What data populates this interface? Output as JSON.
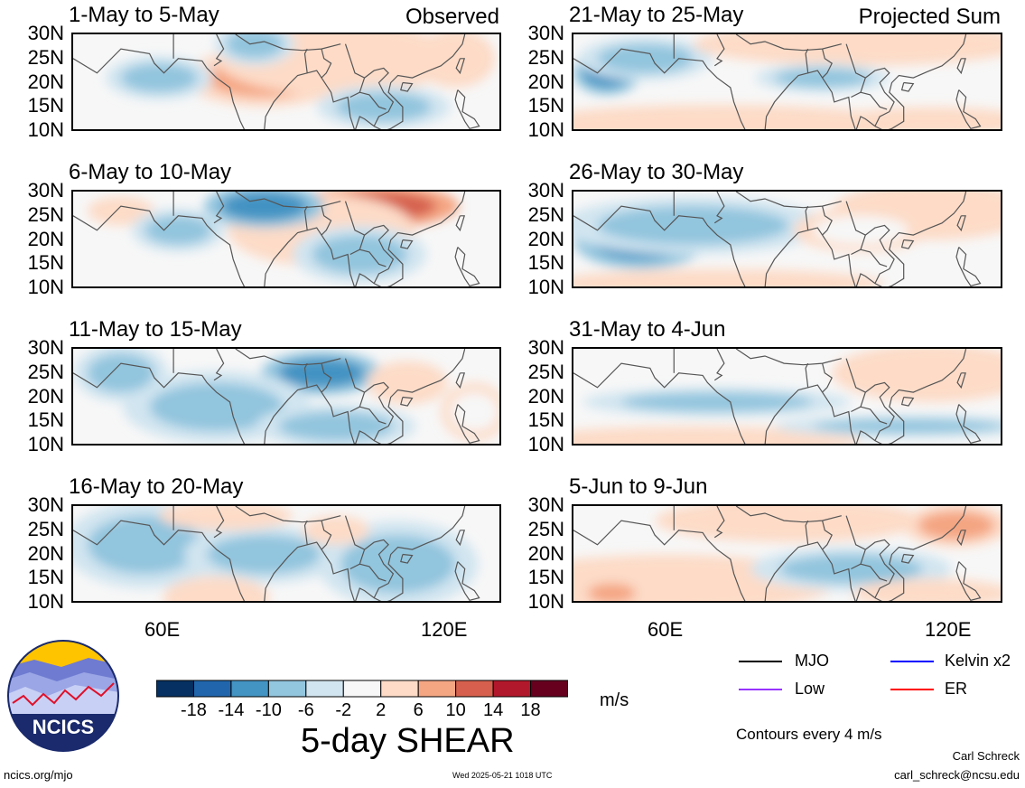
{
  "chart_data": [
    {
      "type": "heatmap",
      "title": "1-May to 5-May",
      "tag": "Observed",
      "column": "left",
      "yticks": [
        "30N",
        "25N",
        "20N",
        "15N",
        "10N"
      ],
      "blobs": [
        {
          "v": 10,
          "lon": 80,
          "lat": 21,
          "rx": 12,
          "ry": 4
        },
        {
          "v": 6,
          "lon": 95,
          "lat": 25,
          "rx": 18,
          "ry": 5
        },
        {
          "v": -6,
          "lon": 78,
          "lat": 28,
          "rx": 6,
          "ry": 3
        },
        {
          "v": -6,
          "lon": 58,
          "lat": 21,
          "rx": 8,
          "ry": 3
        },
        {
          "v": -6,
          "lon": 105,
          "lat": 15,
          "rx": 10,
          "ry": 3
        },
        {
          "v": 6,
          "lon": 120,
          "lat": 25,
          "rx": 6,
          "ry": 4
        }
      ]
    },
    {
      "type": "heatmap",
      "title": "6-May to 10-May",
      "tag": "",
      "column": "left",
      "yticks": [
        "30N",
        "25N",
        "20N",
        "15N",
        "10N"
      ],
      "blobs": [
        {
          "v": 14,
          "lon": 104,
          "lat": 27,
          "rx": 12,
          "ry": 3
        },
        {
          "v": 6,
          "lon": 92,
          "lat": 22,
          "rx": 14,
          "ry": 5
        },
        {
          "v": -10,
          "lon": 80,
          "lat": 27,
          "rx": 9,
          "ry": 3
        },
        {
          "v": -6,
          "lon": 100,
          "lat": 17,
          "rx": 10,
          "ry": 4
        },
        {
          "v": 6,
          "lon": 50,
          "lat": 26,
          "rx": 5,
          "ry": 2
        },
        {
          "v": -6,
          "lon": 62,
          "lat": 22,
          "rx": 7,
          "ry": 3
        }
      ]
    },
    {
      "type": "heatmap",
      "title": "11-May to 15-May",
      "tag": "",
      "column": "left",
      "yticks": [
        "30N",
        "25N",
        "20N",
        "15N",
        "10N"
      ],
      "blobs": [
        {
          "v": -10,
          "lon": 92,
          "lat": 25,
          "rx": 9,
          "ry": 3
        },
        {
          "v": -6,
          "lon": 70,
          "lat": 18,
          "rx": 14,
          "ry": 5
        },
        {
          "v": -6,
          "lon": 50,
          "lat": 25,
          "rx": 7,
          "ry": 4
        },
        {
          "v": -6,
          "lon": 95,
          "lat": 14,
          "rx": 12,
          "ry": 3
        },
        {
          "v": 6,
          "lon": 110,
          "lat": 23,
          "rx": 6,
          "ry": 3
        },
        {
          "v": 2,
          "lon": 124,
          "lat": 17,
          "rx": 5,
          "ry": 4
        }
      ]
    },
    {
      "type": "heatmap",
      "title": "16-May to 20-May",
      "tag": "",
      "column": "left",
      "yticks": [
        "30N",
        "25N",
        "20N",
        "15N",
        "10N"
      ],
      "blobs": [
        {
          "v": -6,
          "lon": 55,
          "lat": 22,
          "rx": 12,
          "ry": 6
        },
        {
          "v": -6,
          "lon": 80,
          "lat": 20,
          "rx": 12,
          "ry": 4
        },
        {
          "v": 6,
          "lon": 70,
          "lat": 11,
          "rx": 8,
          "ry": 3
        },
        {
          "v": 6,
          "lon": 72,
          "lat": 28,
          "rx": 10,
          "ry": 2
        },
        {
          "v": -6,
          "lon": 108,
          "lat": 18,
          "rx": 12,
          "ry": 6
        },
        {
          "v": 6,
          "lon": 95,
          "lat": 25,
          "rx": 5,
          "ry": 2
        }
      ]
    },
    {
      "type": "heatmap",
      "title": "21-May to 25-May",
      "tag": "Projected Sum",
      "column": "right",
      "yticks": [
        "30N",
        "25N",
        "20N",
        "15N",
        "10N"
      ],
      "blobs": [
        {
          "v": -10,
          "lon": 47,
          "lat": 22,
          "rx": 5,
          "ry": 3
        },
        {
          "v": -6,
          "lon": 55,
          "lat": 25,
          "rx": 10,
          "ry": 3
        },
        {
          "v": 6,
          "lon": 70,
          "lat": 11,
          "rx": 30,
          "ry": 3
        },
        {
          "v": 6,
          "lon": 100,
          "lat": 28,
          "rx": 25,
          "ry": 3
        },
        {
          "v": -6,
          "lon": 92,
          "lat": 21,
          "rx": 10,
          "ry": 2
        },
        {
          "v": 6,
          "lon": 115,
          "lat": 12,
          "rx": 15,
          "ry": 2
        }
      ]
    },
    {
      "type": "heatmap",
      "title": "26-May to 30-May",
      "tag": "",
      "column": "right",
      "yticks": [
        "30N",
        "25N",
        "20N",
        "15N",
        "10N"
      ],
      "blobs": [
        {
          "v": -10,
          "lon": 54,
          "lat": 20,
          "rx": 10,
          "ry": 4
        },
        {
          "v": -6,
          "lon": 65,
          "lat": 23,
          "rx": 20,
          "ry": 4
        },
        {
          "v": 6,
          "lon": 115,
          "lat": 26,
          "rx": 15,
          "ry": 4
        },
        {
          "v": 6,
          "lon": 70,
          "lat": 11,
          "rx": 25,
          "ry": 2
        },
        {
          "v": 2,
          "lon": 100,
          "lat": 22,
          "rx": 10,
          "ry": 3
        }
      ]
    },
    {
      "type": "heatmap",
      "title": "31-May to 4-Jun",
      "tag": "",
      "column": "right",
      "yticks": [
        "30N",
        "25N",
        "20N",
        "15N",
        "10N"
      ],
      "blobs": [
        {
          "v": 14,
          "lon": 118,
          "lat": 27,
          "rx": 7,
          "ry": 2
        },
        {
          "v": 6,
          "lon": 115,
          "lat": 25,
          "rx": 15,
          "ry": 4
        },
        {
          "v": -6,
          "lon": 70,
          "lat": 19,
          "rx": 20,
          "ry": 2
        },
        {
          "v": 6,
          "lon": 65,
          "lat": 11,
          "rx": 25,
          "ry": 2
        },
        {
          "v": -6,
          "lon": 110,
          "lat": 14,
          "rx": 20,
          "ry": 1.5
        }
      ]
    },
    {
      "type": "heatmap",
      "title": "5-Jun to 9-Jun",
      "tag": "",
      "column": "right",
      "yticks": [
        "30N",
        "25N",
        "20N",
        "15N",
        "10N"
      ],
      "blobs": [
        {
          "v": 14,
          "lon": 80,
          "lat": 29,
          "rx": 10,
          "ry": 2
        },
        {
          "v": 6,
          "lon": 85,
          "lat": 27,
          "rx": 20,
          "ry": 3
        },
        {
          "v": 10,
          "lon": 120,
          "lat": 26,
          "rx": 8,
          "ry": 3
        },
        {
          "v": 6,
          "lon": 60,
          "lat": 14,
          "rx": 25,
          "ry": 4
        },
        {
          "v": 10,
          "lon": 48,
          "lat": 12,
          "rx": 5,
          "ry": 2
        },
        {
          "v": -6,
          "lon": 98,
          "lat": 17,
          "rx": 15,
          "ry": 3
        },
        {
          "v": 6,
          "lon": 115,
          "lat": 12,
          "rx": 12,
          "ry": 2
        }
      ]
    }
  ],
  "xticks": [
    "60E",
    "120E"
  ],
  "colorbar": {
    "title": "5-day SHEAR",
    "units": "m/s",
    "ticks": [
      "-18",
      "-14",
      "-10",
      "-6",
      "-2",
      "2",
      "6",
      "10",
      "14",
      "18"
    ],
    "colors": [
      "#053061",
      "#2166ac",
      "#4393c3",
      "#92c5de",
      "#d1e5f0",
      "#f7f7f7",
      "#fddbc7",
      "#f4a582",
      "#d6604d",
      "#b2182b",
      "#67001f"
    ]
  },
  "legend": {
    "items": [
      {
        "label": "MJO",
        "color": "#000000"
      },
      {
        "label": "Kelvin x2",
        "color": "#0000ff"
      },
      {
        "label": "Low",
        "color": "#9933ff"
      },
      {
        "label": "ER",
        "color": "#ff0000"
      }
    ],
    "contours": "Contours every 4 m/s"
  },
  "footer": {
    "left": "ncics.org/mjo",
    "center": "Wed 2025-05-21 1018 UTC",
    "author": "Carl Schreck",
    "email": "carl_schreck@ncsu.edu"
  },
  "logo": {
    "text": "NCICS"
  }
}
